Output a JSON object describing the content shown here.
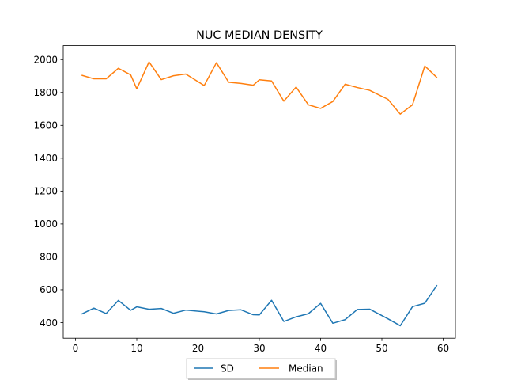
{
  "chart_data": {
    "type": "line",
    "title": "NUC MEDIAN DENSITY",
    "xlabel": "",
    "ylabel": "",
    "xlim": [
      -2,
      62
    ],
    "ylim": [
      305,
      2085
    ],
    "xticks": [
      0,
      10,
      20,
      30,
      40,
      50,
      60
    ],
    "yticks": [
      400,
      600,
      800,
      1000,
      1200,
      1400,
      1600,
      1800,
      2000
    ],
    "grid": false,
    "legend_position": "bottom-center",
    "x": [
      1,
      3,
      5,
      7,
      9,
      10,
      12,
      14,
      16,
      18,
      21,
      23,
      25,
      27,
      29,
      30,
      32,
      34,
      36,
      38,
      40,
      42,
      44,
      46,
      48,
      51,
      53,
      55,
      57,
      59
    ],
    "series": [
      {
        "name": "SD",
        "color": "#1f77b4",
        "values": [
          452,
          488,
          455,
          535,
          475,
          496,
          481,
          486,
          457,
          476,
          466,
          453,
          474,
          478,
          448,
          447,
          536,
          407,
          435,
          454,
          517,
          396,
          418,
          480,
          482,
          423,
          381,
          497,
          518,
          628
        ]
      },
      {
        "name": "Median",
        "color": "#ff7f0e",
        "values": [
          1905,
          1883,
          1883,
          1947,
          1907,
          1822,
          1986,
          1878,
          1902,
          1912,
          1842,
          1981,
          1862,
          1855,
          1844,
          1877,
          1870,
          1747,
          1833,
          1725,
          1703,
          1745,
          1850,
          1830,
          1813,
          1758,
          1668,
          1725,
          1961,
          1890
        ]
      }
    ]
  }
}
